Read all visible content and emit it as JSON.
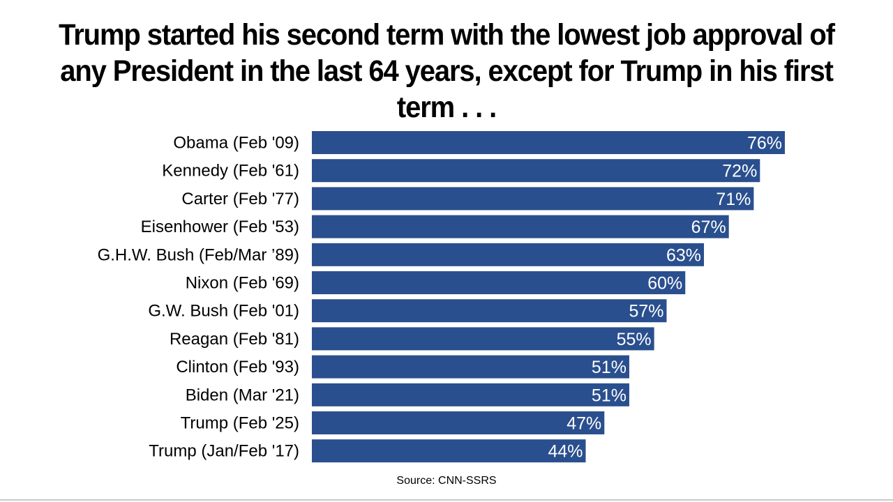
{
  "chart_data": {
    "type": "bar",
    "orientation": "horizontal",
    "title": "Trump started his second term with the lowest job approval of any President in the last 64 years, except for Trump in his first term . . .",
    "categories": [
      "Obama (Feb '09)",
      "Kennedy (Feb '61)",
      "Carter (Feb '77)",
      "Eisenhower (Feb '53)",
      "G.H.W. Bush (Feb/Mar ’89)",
      "Nixon (Feb '69)",
      "G.W. Bush (Feb '01)",
      "Reagan (Feb '81)",
      "Clinton (Feb '93)",
      "Biden (Mar '21)",
      "Trump (Feb '25)",
      "Trump (Jan/Feb '17)"
    ],
    "values": [
      76,
      72,
      71,
      67,
      63,
      60,
      57,
      55,
      51,
      51,
      47,
      44
    ],
    "value_suffix": "%",
    "xlim": [
      0,
      100
    ],
    "grid": false,
    "bar_color": "#2a4f8e",
    "source": "Source: CNN-SSRS"
  }
}
